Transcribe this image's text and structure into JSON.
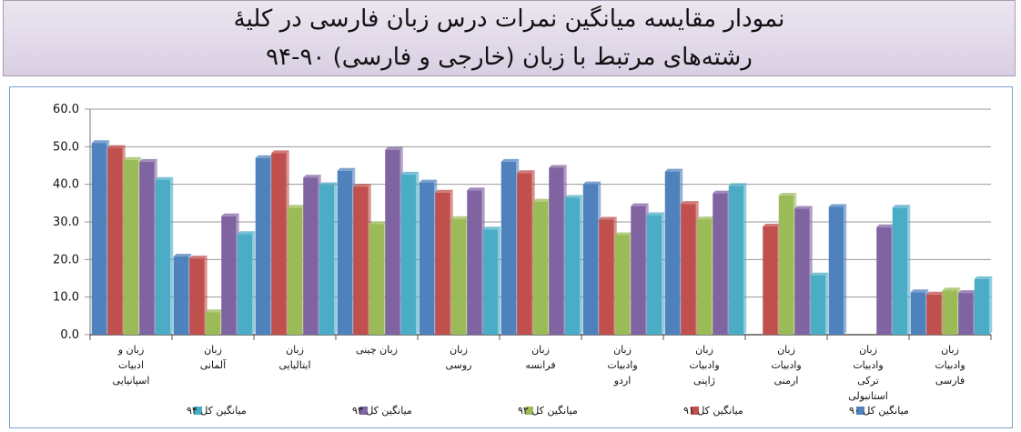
{
  "header": {
    "title_line1": "نمودار مقایسه میانگین نمرات درس زبان فارسی در کلیۀ",
    "title_line2": "رشته‌های مرتبط با زبان (خارجی و فارسی) ۹۰-۹۴"
  },
  "colors": {
    "series": [
      "#4f81bd",
      "#c0504d",
      "#9bbb59",
      "#8064a2",
      "#4bacc6"
    ],
    "header_bg": "#ddd3e6",
    "grid": "#999999"
  },
  "chart_data": {
    "type": "bar",
    "categories": [
      [
        "زبان و",
        "ادبیات",
        "اسپانیایی"
      ],
      [
        "زبان",
        "آلمانی"
      ],
      [
        "زبان",
        "ایتالیایی"
      ],
      [
        "زبان چینی"
      ],
      [
        "زبان",
        "روسی"
      ],
      [
        "زبان",
        "فرانسه"
      ],
      [
        "زبان",
        "وادبیات",
        "اردو"
      ],
      [
        "زبان",
        "وادبیات",
        "ژاپنی"
      ],
      [
        "زبان",
        "وادبیات",
        "ارمنی"
      ],
      [
        "زبان",
        "وادبیات",
        "ترکی",
        "استانبولی"
      ],
      [
        "زبان",
        "وادبیات",
        "فارسی"
      ]
    ],
    "series": [
      {
        "name": "میانگین کل ۹۰",
        "values": [
          51.0,
          20.8,
          47.0,
          43.6,
          40.5,
          46.0,
          40.0,
          43.4,
          0,
          34.0,
          11.3
        ]
      },
      {
        "name": "میانگین کل ۹۱",
        "values": [
          49.7,
          20.3,
          48.3,
          39.4,
          37.8,
          43.0,
          30.6,
          34.8,
          28.8,
          0,
          10.7
        ]
      },
      {
        "name": "میانگین کل ۹۲",
        "values": [
          46.5,
          6.0,
          33.8,
          29.4,
          30.8,
          35.4,
          26.5,
          30.7,
          37.0,
          0,
          11.8
        ]
      },
      {
        "name": "میانگین کل ۹۳",
        "values": [
          46.0,
          31.5,
          41.8,
          49.2,
          38.4,
          44.4,
          34.2,
          37.6,
          33.5,
          28.6,
          11.1
        ]
      },
      {
        "name": "میانگین کل ۹۴",
        "values": [
          41.2,
          26.8,
          39.8,
          42.6,
          28.0,
          36.4,
          31.8,
          39.6,
          15.8,
          33.8,
          14.8
        ]
      }
    ],
    "yticks": [
      "60.0",
      "50.0",
      "40.0",
      "30.0",
      "20.0",
      "10.0",
      "0.0"
    ],
    "ylim": [
      0,
      60
    ],
    "grid": true,
    "legend_position": "bottom"
  }
}
